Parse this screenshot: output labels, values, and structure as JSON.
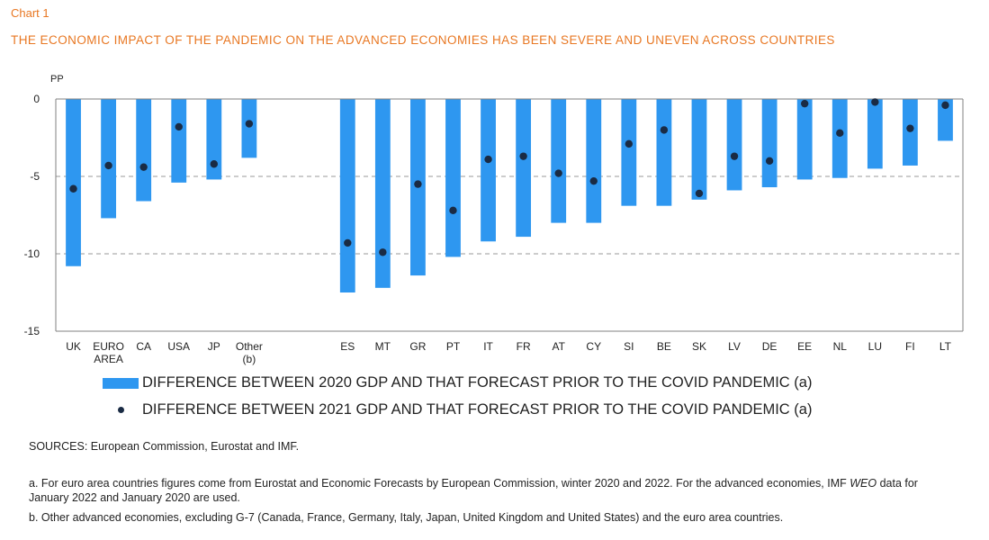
{
  "header": {
    "chart_label": "Chart 1",
    "title": "THE ECONOMIC IMPACT OF THE PANDEMIC ON THE ADVANCED ECONOMIES HAS BEEN SEVERE AND UNEVEN ACROSS COUNTRIES"
  },
  "chart_data": {
    "type": "bar",
    "ylabel": "PP",
    "ylim": [
      -15,
      0
    ],
    "yticks": [
      0,
      -5,
      -10,
      -15
    ],
    "ytick_labels": [
      "0",
      "-5",
      "-10",
      "-15"
    ],
    "grid": true,
    "groups": [
      {
        "name": "advanced",
        "categories": [
          "UK",
          "EURO AREA",
          "CA",
          "USA",
          "JP",
          "Other (b)"
        ]
      },
      {
        "name": "euro_area",
        "categories": [
          "ES",
          "MT",
          "GR",
          "PT",
          "IT",
          "FR",
          "AT",
          "CY",
          "SI",
          "BE",
          "SK",
          "LV",
          "DE",
          "EE",
          "NL",
          "LU",
          "FI",
          "LT"
        ]
      }
    ],
    "categories": [
      "UK",
      "EURO AREA",
      "CA",
      "USA",
      "JP",
      "Other (b)",
      "ES",
      "MT",
      "GR",
      "PT",
      "IT",
      "FR",
      "AT",
      "CY",
      "SI",
      "BE",
      "SK",
      "LV",
      "DE",
      "EE",
      "NL",
      "LU",
      "FI",
      "LT"
    ],
    "category_tick_labels": [
      [
        "UK"
      ],
      [
        "EURO",
        "AREA"
      ],
      [
        "CA"
      ],
      [
        "USA"
      ],
      [
        "JP"
      ],
      [
        "Other",
        "(b)"
      ],
      [
        "ES"
      ],
      [
        "MT"
      ],
      [
        "GR"
      ],
      [
        "PT"
      ],
      [
        "IT"
      ],
      [
        "FR"
      ],
      [
        "AT"
      ],
      [
        "CY"
      ],
      [
        "SI"
      ],
      [
        "BE"
      ],
      [
        "SK"
      ],
      [
        "LV"
      ],
      [
        "DE"
      ],
      [
        "EE"
      ],
      [
        "NL"
      ],
      [
        "LU"
      ],
      [
        "FI"
      ],
      [
        "LT"
      ]
    ],
    "series": [
      {
        "name": "DIFFERENCE BETWEEN 2020 GDP AND THAT FORECAST PRIOR TO THE COVID PANDEMIC (a)",
        "type": "bar",
        "color": "#2e97f0",
        "values": [
          -10.8,
          -7.7,
          -6.6,
          -5.4,
          -5.2,
          -3.8,
          -12.5,
          -12.2,
          -11.4,
          -10.2,
          -9.2,
          -8.9,
          -8.0,
          -8.0,
          -6.9,
          -6.9,
          -6.5,
          -5.9,
          -5.7,
          -5.2,
          -5.1,
          -4.5,
          -4.3,
          -2.7
        ]
      },
      {
        "name": "DIFFERENCE BETWEEN 2021 GDP AND THAT FORECAST PRIOR TO THE COVID PANDEMIC (a)",
        "type": "scatter",
        "color": "#1a2b44",
        "values": [
          -5.8,
          -4.3,
          -4.4,
          -1.8,
          -4.2,
          -1.6,
          -9.3,
          -9.9,
          -5.5,
          -7.2,
          -3.9,
          -3.7,
          -4.8,
          -5.3,
          -2.9,
          -2.0,
          -6.1,
          -3.7,
          -4.0,
          -0.3,
          -2.2,
          -0.2,
          -1.9,
          -0.4
        ]
      }
    ]
  },
  "legend": {
    "bar_label": "DIFFERENCE BETWEEN 2020 GDP AND THAT FORECAST PRIOR TO THE COVID PANDEMIC (a)",
    "dot_label": "DIFFERENCE BETWEEN 2021 GDP AND THAT FORECAST PRIOR TO THE COVID PANDEMIC (a)"
  },
  "footer": {
    "sources": "SOURCES: European Commission, Eurostat and IMF.",
    "note_a_part1": "a. For euro area countries figures come from Eurostat and Economic Forecasts by European Commission, winter 2020 and 2022. For the advanced economies, IMF ",
    "note_a_weo": "WEO",
    "note_a_part2": " data for January 2022 and January 2020 are used.",
    "note_b": "b. Other advanced economies, excluding G-7 (Canada, France, Germany, Italy, Japan, United Kingdom and United States) and the euro area countries."
  }
}
